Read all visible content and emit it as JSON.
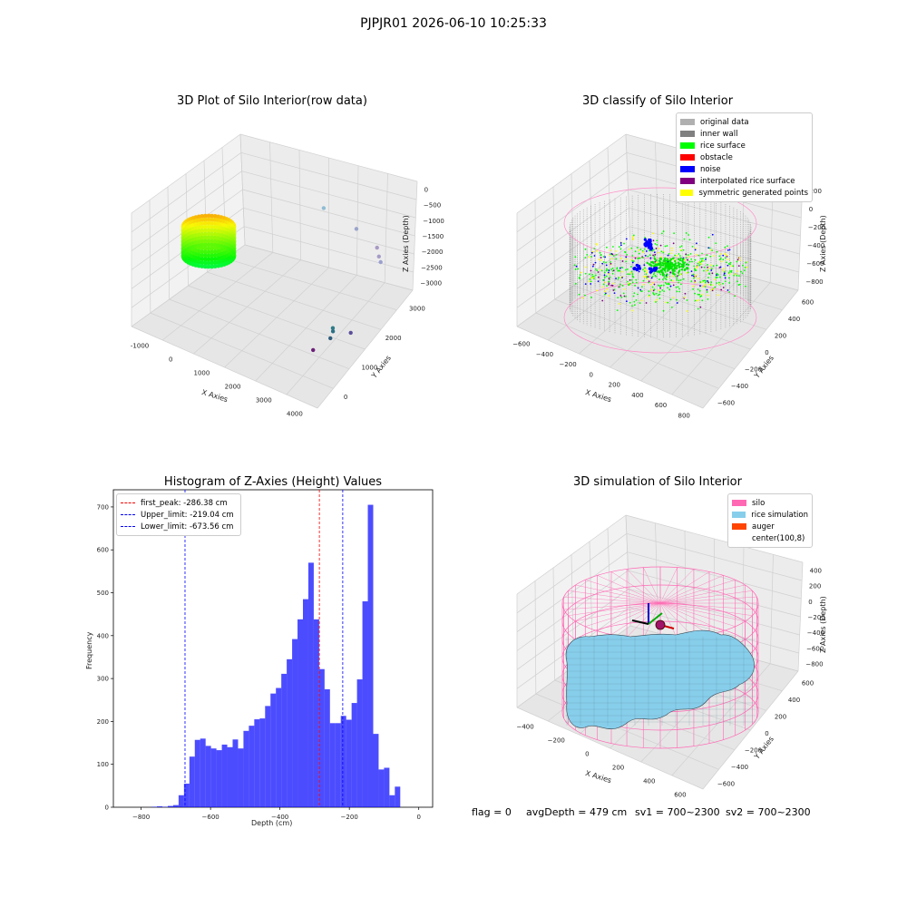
{
  "suptitle": "PJPJR01 2026-06-10 10:25:33",
  "footer": {
    "flag": "flag = 0",
    "avgDepth": "avgDepth = 479 cm",
    "sv1": "sv1 = 700~2300",
    "sv2": "sv2 = 700~2300"
  },
  "colors": {
    "pane": "#f2f2f2",
    "grid": "#d7d7d7",
    "bar": "#0000ff",
    "first_peak": "#ff0000",
    "limit": "#0000ff",
    "silo": "#ff69b4",
    "rice": "#87ceeb",
    "auger": "#ff4500"
  },
  "chart_data": [
    {
      "type": "scatter",
      "title": "3D Plot of Silo Interior(row data)",
      "xlabel": "X Axies",
      "ylabel": "Y Axies",
      "zlabel": "Z Axies (Depth)",
      "x_ticks": [
        "-1000",
        "0",
        "1000",
        "2000",
        "3000",
        "4000"
      ],
      "y_ticks": [
        "0",
        "1000",
        "2000",
        "3000"
      ],
      "z_ticks": [
        "0",
        "−500",
        "−1000",
        "−1500",
        "−2000",
        "−2500",
        "−3000"
      ],
      "xlim": [
        -1500,
        4500
      ],
      "ylim": [
        -600,
        3500
      ],
      "zlim": [
        -3300,
        200
      ],
      "outliers": [
        {
          "x": 1400,
          "y": 3100,
          "z": -700
        },
        {
          "x": 2500,
          "y": 3050,
          "z": -850
        },
        {
          "x": 3300,
          "y": 2900,
          "z": -1000
        },
        {
          "x": 3450,
          "y": 2800,
          "z": -1150
        },
        {
          "x": 3550,
          "y": 2750,
          "z": -1250
        },
        {
          "x": 3300,
          "y": 1300,
          "z": -2500
        },
        {
          "x": 3350,
          "y": 1250,
          "z": -2550
        },
        {
          "x": 3700,
          "y": 1500,
          "z": -2600
        },
        {
          "x": 3400,
          "y": 1100,
          "z": -2650
        },
        {
          "x": 3200,
          "y": 700,
          "z": -2850
        }
      ]
    },
    {
      "type": "scatter",
      "title": "3D classify of Silo Interior",
      "xlabel": "X Axies",
      "ylabel": "Y Axies",
      "zlabel": "Z Axies (Depth)",
      "x_ticks": [
        "−600",
        "−400",
        "−200",
        "0",
        "200",
        "400",
        "600",
        "800"
      ],
      "y_ticks": [
        "−600",
        "−400",
        "−200",
        "0",
        "200",
        "400",
        "600"
      ],
      "z_ticks": [
        "200",
        "0",
        "−200",
        "−400",
        "−600",
        "−800"
      ],
      "legend": [
        {
          "label": "original data",
          "color": "#b0b0b0"
        },
        {
          "label": "inner wall",
          "color": "#808080"
        },
        {
          "label": "rice surface",
          "color": "#00ff00"
        },
        {
          "label": "obstacle",
          "color": "#ff0000"
        },
        {
          "label": "noise",
          "color": "#0000ff"
        },
        {
          "label": "interpolated rice surface",
          "color": "#800080"
        },
        {
          "label": "symmetric generated points",
          "color": "#ffff00"
        }
      ]
    },
    {
      "type": "bar",
      "title": "Histogram of Z-Axies (Height) Values",
      "xlabel": "Depth (cm)",
      "ylabel": "Frequency",
      "xlim": [
        -880,
        40
      ],
      "ylim": [
        0,
        740
      ],
      "x_ticks": [
        -800,
        -600,
        -400,
        -200,
        0
      ],
      "x_tick_labels": [
        "−800",
        "−600",
        "−400",
        "−200",
        "0"
      ],
      "y_ticks": [
        0,
        100,
        200,
        300,
        400,
        500,
        600,
        700
      ],
      "bin_start": -770,
      "bin_width": 15.58,
      "values": [
        1,
        2,
        1,
        3,
        5,
        28,
        55,
        118,
        157,
        160,
        143,
        137,
        133,
        146,
        140,
        158,
        137,
        178,
        190,
        205,
        207,
        236,
        265,
        278,
        311,
        345,
        392,
        438,
        485,
        570,
        438,
        322,
        275,
        196,
        196,
        213,
        204,
        243,
        298,
        480,
        705,
        171,
        88,
        92,
        28,
        48
      ],
      "lines": [
        {
          "label": "first_peak: -286.38 cm",
          "x": -286.38,
          "color": "#ff0000"
        },
        {
          "label": "Upper_limit: -219.04 cm",
          "x": -219.04,
          "color": "#0000ff"
        },
        {
          "label": "Lower_limit: -673.56 cm",
          "x": -673.56,
          "color": "#0000ff"
        }
      ]
    },
    {
      "type": "area",
      "title": "3D simulation of Silo Interior",
      "xlabel": "X Axies",
      "ylabel": "Y Axies",
      "zlabel": "Z Axies (Depth)",
      "x_ticks": [
        "−400",
        "−200",
        "0",
        "200",
        "400",
        "600"
      ],
      "y_ticks": [
        "−600",
        "−400",
        "−200",
        "0",
        "200",
        "400",
        "600"
      ],
      "z_ticks": [
        "400",
        "200",
        "0",
        "−200",
        "−400",
        "−600",
        "−800"
      ],
      "legend": [
        {
          "label": "silo",
          "color": "#ff69b4"
        },
        {
          "label": "rice simulation",
          "color": "#87ceeb"
        },
        {
          "label": "auger",
          "color": "#ff4500"
        },
        {
          "label": "center(100,8)",
          "color": ""
        }
      ]
    }
  ]
}
